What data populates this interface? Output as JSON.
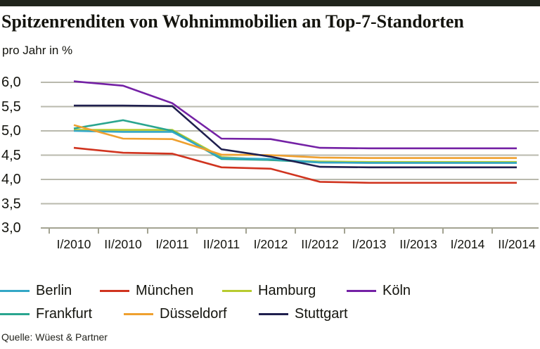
{
  "header": {
    "title": "Spitzenrenditen von Wohnimmobilien an Top-7-Standorten",
    "subtitle": "pro Jahr in %"
  },
  "source": "Quelle: Wüest & Partner",
  "colors": {
    "grid": "#b9b9ad",
    "axis": "#a3a392",
    "top_bar": "#20241c",
    "text": "#14140e"
  },
  "chart_data": {
    "type": "line",
    "title": "Spitzenrenditen von Wohnimmobilien an Top-7-Standorten",
    "ylabel": "pro Jahr in %",
    "xlabel": "",
    "grid": true,
    "legend_position": "bottom",
    "ylim": [
      3.0,
      6.0
    ],
    "ytick_step": 0.5,
    "yticks": [
      {
        "label": "6,0",
        "value": 6.0
      },
      {
        "label": "5,5",
        "value": 5.5
      },
      {
        "label": "5,0",
        "value": 5.0
      },
      {
        "label": "4,5",
        "value": 4.5
      },
      {
        "label": "4,0",
        "value": 4.0
      },
      {
        "label": "3,5",
        "value": 3.5
      },
      {
        "label": "3,0",
        "value": 3.0
      }
    ],
    "categories": [
      "I/2010",
      "II/2010",
      "I/2011",
      "II/2011",
      "I/2012",
      "II/2012",
      "I/2013",
      "II/2013",
      "I/2014",
      "II/2014"
    ],
    "series": [
      {
        "name": "Berlin",
        "color": "#33a7c6",
        "values": [
          5.0,
          4.98,
          4.98,
          4.44,
          4.42,
          4.35,
          4.34,
          4.34,
          4.34,
          4.34
        ]
      },
      {
        "name": "München",
        "color": "#d0341f",
        "values": [
          4.65,
          4.55,
          4.53,
          4.25,
          4.22,
          3.95,
          3.93,
          3.93,
          3.93,
          3.93
        ]
      },
      {
        "name": "Hamburg",
        "color": "#b7cb2f",
        "values": [
          5.02,
          5.02,
          5.02,
          4.46,
          4.4,
          4.37,
          4.36,
          4.36,
          4.36,
          4.36
        ]
      },
      {
        "name": "Köln",
        "color": "#7421a5",
        "values": [
          6.02,
          5.93,
          5.57,
          4.84,
          4.83,
          4.65,
          4.64,
          4.64,
          4.64,
          4.64
        ]
      },
      {
        "name": "Frankfurt",
        "color": "#2aa58f",
        "values": [
          5.05,
          5.22,
          5.0,
          4.42,
          4.4,
          4.35,
          4.34,
          4.34,
          4.34,
          4.34
        ]
      },
      {
        "name": "Düsseldorf",
        "color": "#efa02f",
        "values": [
          5.12,
          4.84,
          4.83,
          4.51,
          4.5,
          4.45,
          4.44,
          4.44,
          4.44,
          4.44
        ]
      },
      {
        "name": "Stuttgart",
        "color": "#1f1f4e",
        "values": [
          5.52,
          5.52,
          5.51,
          4.62,
          4.47,
          4.26,
          4.25,
          4.25,
          4.25,
          4.25
        ]
      }
    ],
    "draw_order": [
      2,
      4,
      0,
      5,
      1,
      3,
      6
    ]
  }
}
